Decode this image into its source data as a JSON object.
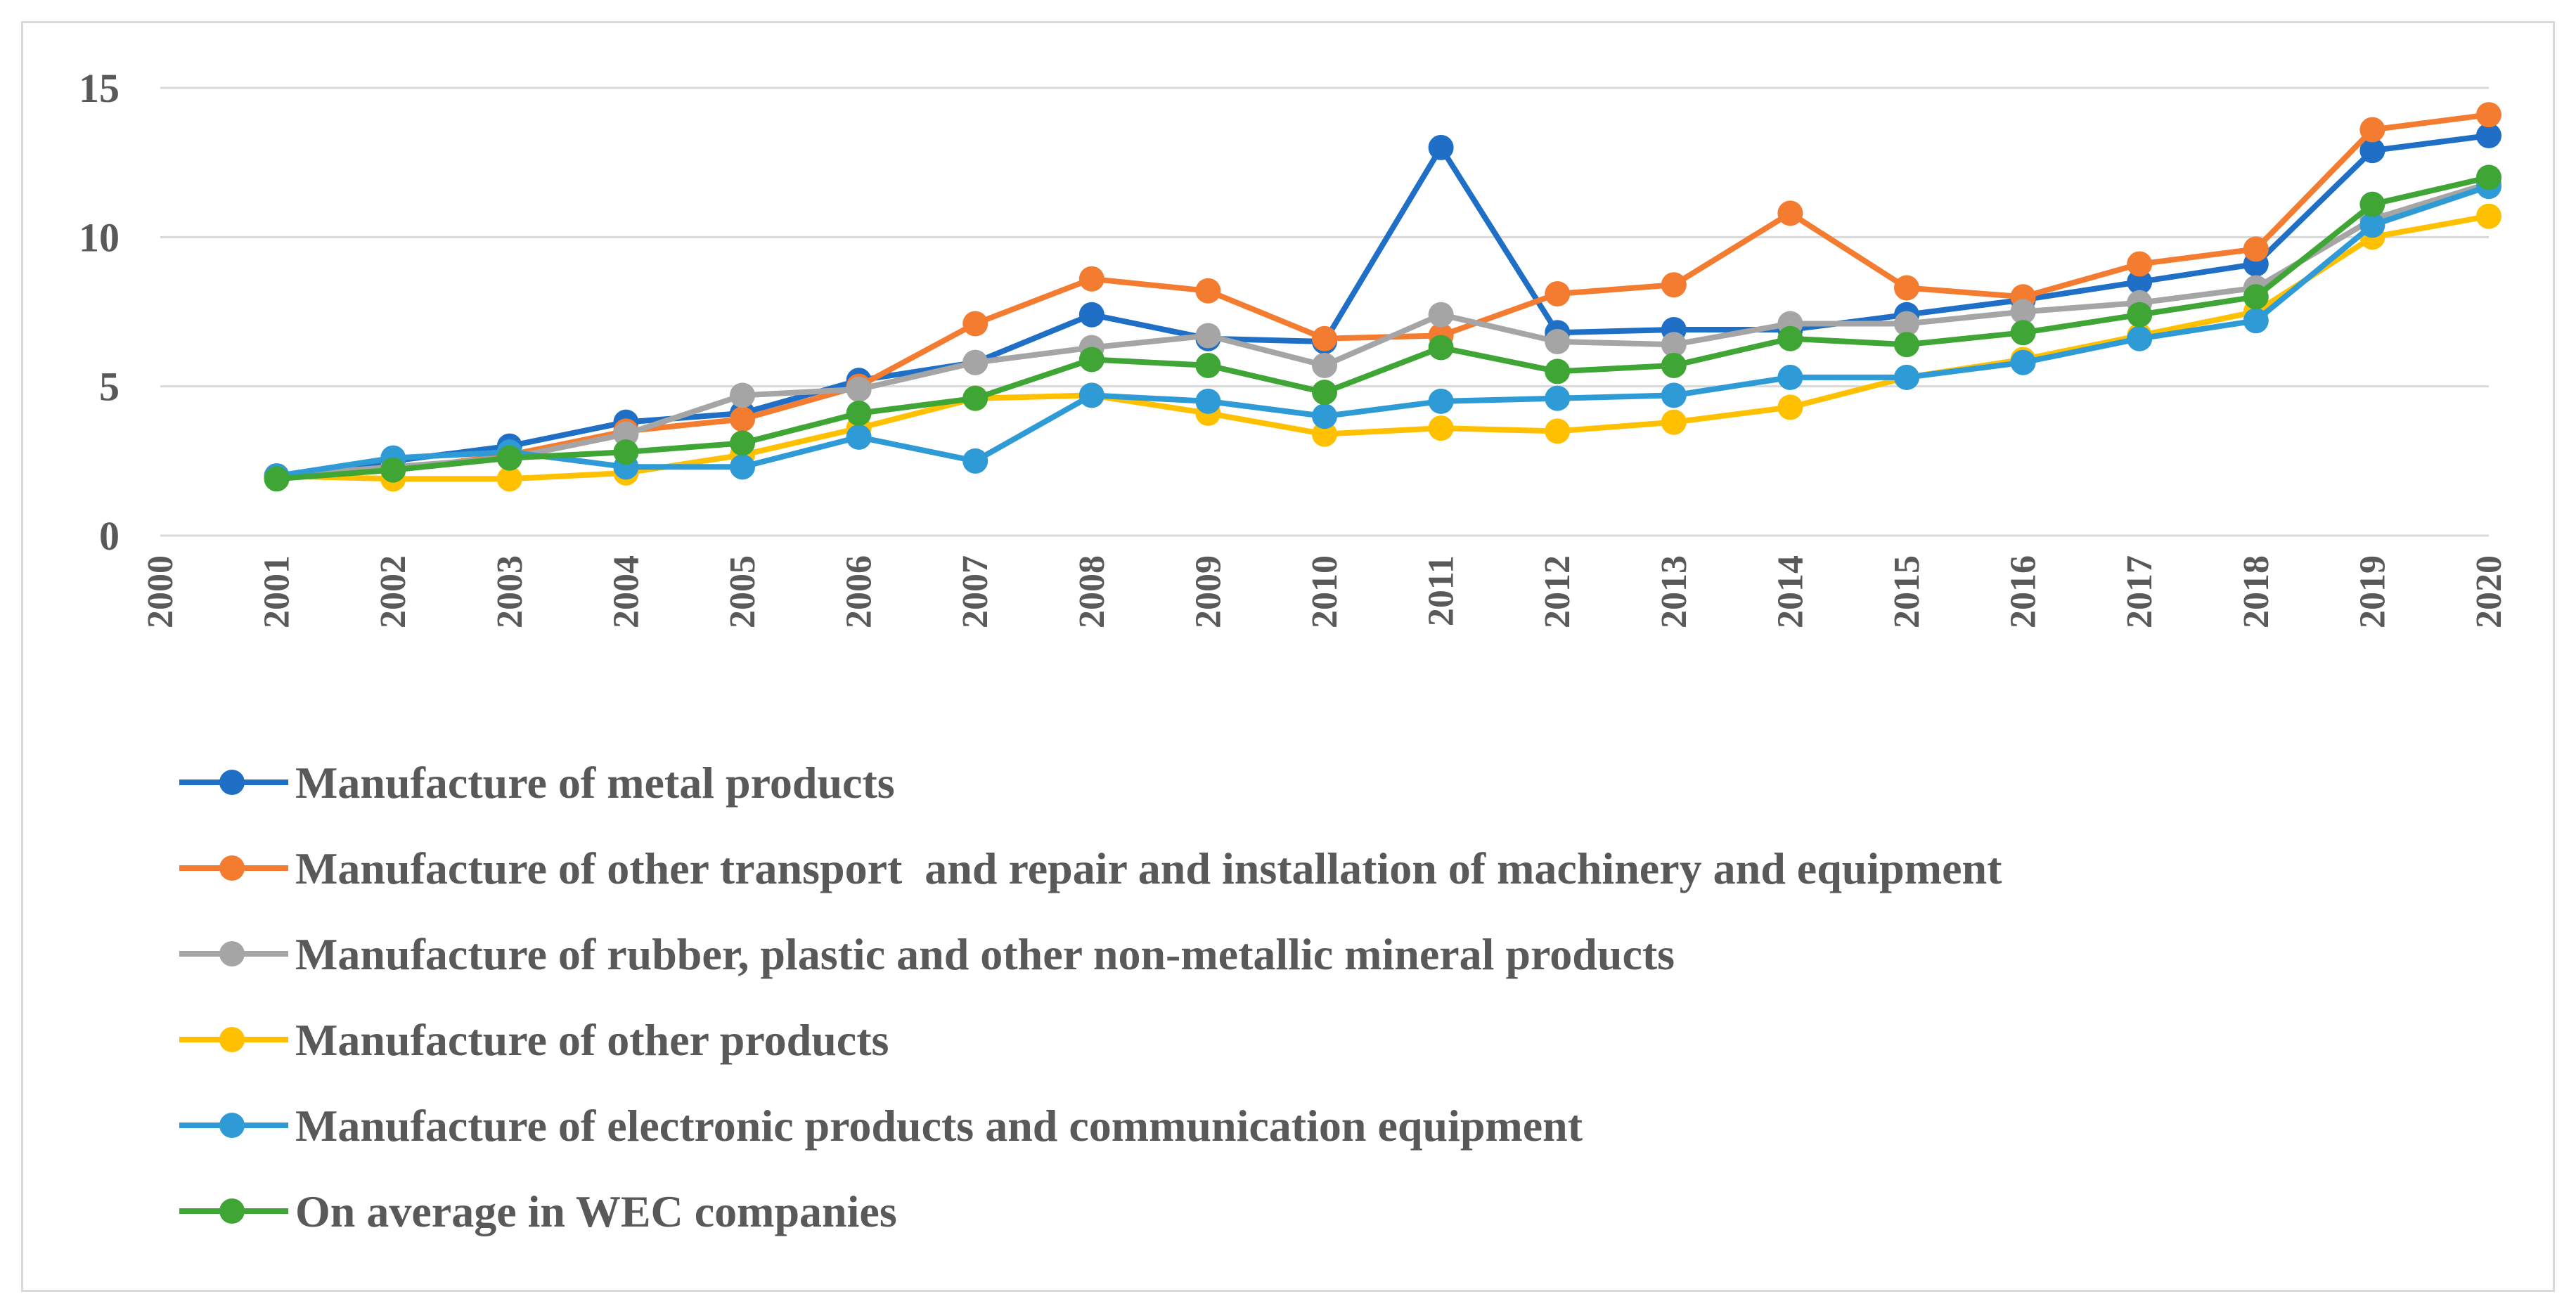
{
  "chart_data": {
    "type": "line",
    "title": "",
    "xlabel": "",
    "ylabel": "",
    "ylim": [
      0,
      15
    ],
    "yticks": [
      "0",
      "5",
      "10",
      "15"
    ],
    "categories": [
      "2000",
      "2001",
      "2002",
      "2003",
      "2004",
      "2005",
      "2006",
      "2007",
      "2008",
      "2009",
      "2010",
      "2011",
      "2012",
      "2013",
      "2014",
      "2015",
      "2016",
      "2017",
      "2018",
      "2019",
      "2020"
    ],
    "grid": true,
    "legend_position": "bottom",
    "series": [
      {
        "name": "Manufacture of metal products",
        "color": "#1f6fc6",
        "values": [
          null,
          2.0,
          2.5,
          3.0,
          3.8,
          4.1,
          5.2,
          5.8,
          7.4,
          6.6,
          6.5,
          13.0,
          6.8,
          6.9,
          6.9,
          7.4,
          7.9,
          8.5,
          9.1,
          12.9,
          13.4
        ]
      },
      {
        "name": "Manufacture of other transport  and repair and installation of machinery and equipment",
        "color": "#f47c30",
        "values": [
          null,
          2.0,
          2.2,
          2.7,
          3.5,
          3.9,
          5.0,
          7.1,
          8.6,
          8.2,
          6.6,
          6.7,
          8.1,
          8.4,
          10.8,
          8.3,
          8.0,
          9.1,
          9.6,
          13.6,
          14.1
        ]
      },
      {
        "name": "Manufacture of rubber, plastic and other non-metallic mineral products",
        "color": "#a5a5a5",
        "values": [
          null,
          2.0,
          2.3,
          2.6,
          3.4,
          4.7,
          4.9,
          5.8,
          6.3,
          6.7,
          5.7,
          7.4,
          6.5,
          6.4,
          7.1,
          7.1,
          7.5,
          7.8,
          8.3,
          10.6,
          11.8
        ]
      },
      {
        "name": "Manufacture of other products",
        "color": "#ffc000",
        "values": [
          null,
          2.0,
          1.9,
          1.9,
          2.1,
          2.7,
          3.6,
          4.6,
          4.7,
          4.1,
          3.4,
          3.6,
          3.5,
          3.8,
          4.3,
          5.3,
          5.9,
          6.7,
          7.5,
          10.0,
          10.7
        ]
      },
      {
        "name": "Manufacture of electronic products and communication equipment",
        "color": "#2e9ad6",
        "values": [
          null,
          2.0,
          2.6,
          2.8,
          2.3,
          2.3,
          3.3,
          2.5,
          4.7,
          4.5,
          4.0,
          4.5,
          4.6,
          4.7,
          5.3,
          5.3,
          5.8,
          6.6,
          7.2,
          10.4,
          11.7
        ]
      },
      {
        "name": "On average in WEC companies",
        "color": "#3fa636",
        "values": [
          null,
          1.9,
          2.2,
          2.6,
          2.8,
          3.1,
          4.1,
          4.6,
          5.9,
          5.7,
          4.8,
          6.3,
          5.5,
          5.7,
          6.6,
          6.4,
          6.8,
          7.4,
          8.0,
          11.1,
          12.0
        ]
      }
    ]
  }
}
